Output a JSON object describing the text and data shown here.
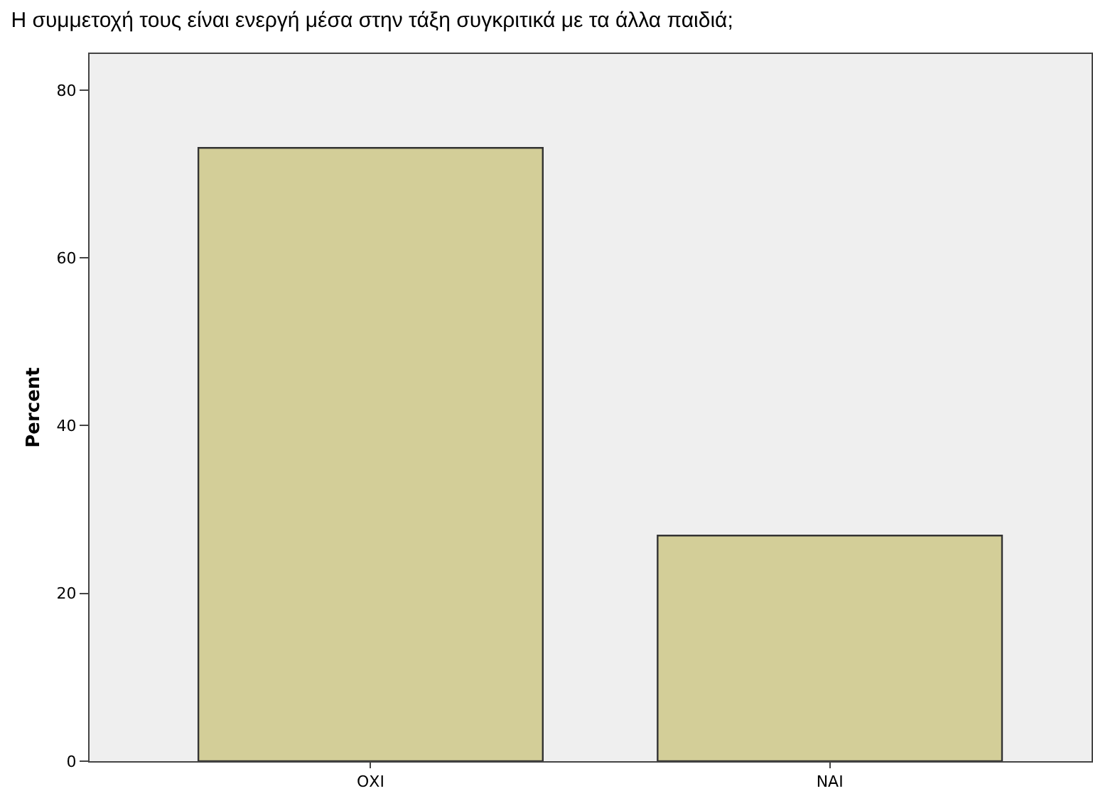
{
  "chart_data": {
    "type": "bar",
    "title": "Η συμμετοχή τους είναι ενεργή μέσα στην τάξη συγκριτικά με τα άλλα παιδιά;",
    "ylabel": "Percent",
    "categories": [
      "ΟΧΙ",
      "ΝΑΙ"
    ],
    "values": [
      73.1,
      26.9
    ],
    "color": "#d3ce98",
    "ylim": [
      0,
      84.3
    ],
    "yticks": [
      0,
      20,
      40,
      60,
      80
    ],
    "grid": false,
    "legend": false
  }
}
